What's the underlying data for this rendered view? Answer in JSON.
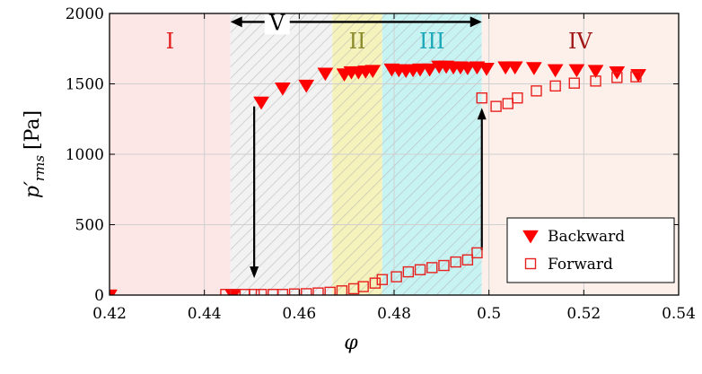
{
  "chart_data": {
    "type": "scatter",
    "xlabel": "φ",
    "ylabel_main": "p′",
    "ylabel_sub": "rms",
    "ylabel_unit": "[Pa]",
    "xlim": [
      0.42,
      0.54
    ],
    "ylim": [
      0,
      2000
    ],
    "xticks": [
      0.42,
      0.44,
      0.46,
      0.48,
      0.5,
      0.52,
      0.54
    ],
    "xtick_labels": [
      "0.42",
      "0.44",
      "0.46",
      "0.48",
      "0.5",
      "0.52",
      "0.54"
    ],
    "yticks": [
      0,
      500,
      1000,
      1500,
      2000
    ],
    "ytick_labels": [
      "0",
      "500",
      "1000",
      "1500",
      "2000"
    ],
    "grid": true,
    "legend_position": "bottom-right",
    "regions": [
      {
        "label": "I",
        "x0": 0.42,
        "x1": 0.4455,
        "color": "#fde6e6",
        "text_color": "#e32020",
        "hatch": false
      },
      {
        "label": "",
        "x0": 0.4455,
        "x1": 0.467,
        "color": "#f2f2f2",
        "text_color": "#000000",
        "hatch": true
      },
      {
        "label": "II",
        "x0": 0.467,
        "x1": 0.4775,
        "color": "#f5f2bc",
        "text_color": "#8a8a2a",
        "hatch": true
      },
      {
        "label": "III",
        "x0": 0.4775,
        "x1": 0.4985,
        "color": "#c8f3f3",
        "text_color": "#1aa8b8",
        "hatch": true
      },
      {
        "label": "IV",
        "x0": 0.4985,
        "x1": 0.54,
        "color": "#fdf0ea",
        "text_color": "#a01818",
        "hatch": false
      }
    ],
    "span_annotation": {
      "label": "V",
      "x0": 0.4455,
      "x1": 0.4985,
      "y": 1940
    },
    "transition_arrows": [
      {
        "x": 0.4505,
        "from": 1340,
        "to": 120,
        "direction": "down"
      },
      {
        "x": 0.4985,
        "from": 320,
        "to": 1330,
        "direction": "up"
      }
    ],
    "series": [
      {
        "name": "Backward",
        "marker": "triangle-down",
        "color": "#ff0000",
        "points": [
          [
            0.42,
            0
          ],
          [
            0.446,
            0
          ],
          [
            0.452,
            1370
          ],
          [
            0.4565,
            1470
          ],
          [
            0.4615,
            1490
          ],
          [
            0.4655,
            1575
          ],
          [
            0.4695,
            1570
          ],
          [
            0.471,
            1585
          ],
          [
            0.4725,
            1585
          ],
          [
            0.474,
            1590
          ],
          [
            0.4755,
            1595
          ],
          [
            0.4795,
            1605
          ],
          [
            0.481,
            1600
          ],
          [
            0.4825,
            1595
          ],
          [
            0.484,
            1600
          ],
          [
            0.4855,
            1605
          ],
          [
            0.4875,
            1605
          ],
          [
            0.4895,
            1625
          ],
          [
            0.491,
            1625
          ],
          [
            0.4925,
            1620
          ],
          [
            0.494,
            1620
          ],
          [
            0.4955,
            1615
          ],
          [
            0.4975,
            1620
          ],
          [
            0.4995,
            1610
          ],
          [
            0.5035,
            1620
          ],
          [
            0.5055,
            1620
          ],
          [
            0.5095,
            1615
          ],
          [
            0.514,
            1600
          ],
          [
            0.5185,
            1600
          ],
          [
            0.5225,
            1595
          ],
          [
            0.527,
            1585
          ],
          [
            0.5315,
            1565
          ]
        ]
      },
      {
        "name": "Forward",
        "marker": "square-open",
        "color": "#e8201e",
        "points": [
          [
            0.4445,
            5
          ],
          [
            0.4465,
            5
          ],
          [
            0.4485,
            5
          ],
          [
            0.4505,
            5
          ],
          [
            0.452,
            5
          ],
          [
            0.4545,
            5
          ],
          [
            0.4565,
            5
          ],
          [
            0.459,
            8
          ],
          [
            0.4615,
            10
          ],
          [
            0.464,
            15
          ],
          [
            0.4665,
            20
          ],
          [
            0.469,
            30
          ],
          [
            0.4715,
            45
          ],
          [
            0.4735,
            60
          ],
          [
            0.476,
            85
          ],
          [
            0.4775,
            110
          ],
          [
            0.4805,
            130
          ],
          [
            0.483,
            165
          ],
          [
            0.4855,
            180
          ],
          [
            0.488,
            195
          ],
          [
            0.4905,
            210
          ],
          [
            0.493,
            235
          ],
          [
            0.4955,
            250
          ],
          [
            0.4975,
            300
          ],
          [
            0.4985,
            1400
          ],
          [
            0.5015,
            1340
          ],
          [
            0.504,
            1360
          ],
          [
            0.506,
            1400
          ],
          [
            0.51,
            1450
          ],
          [
            0.514,
            1485
          ],
          [
            0.518,
            1505
          ],
          [
            0.5225,
            1520
          ],
          [
            0.527,
            1545
          ],
          [
            0.531,
            1550
          ]
        ]
      }
    ]
  }
}
